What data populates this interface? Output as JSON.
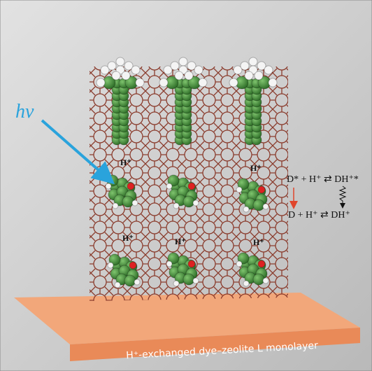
{
  "annotations": {
    "photon": "hν",
    "proton_labels": [
      "H⁺",
      "H⁺",
      "H⁺",
      "H⁺",
      "H⁺"
    ],
    "equations": [
      "D* + H⁺ ⇄ DH⁺*",
      "D + H⁺ ⇄ DH⁺"
    ],
    "substrate_label": "H⁺-exchanged dye–zeolite L monolayer"
  }
}
